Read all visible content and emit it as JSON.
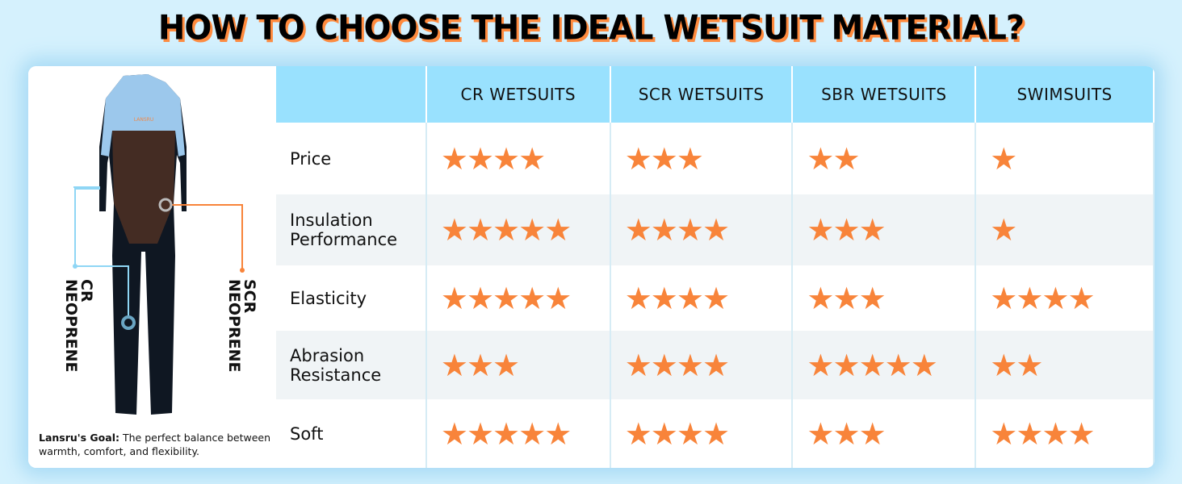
{
  "title": "HOW TO CHOOSE THE IDEAL WETSUIT MATERIAL?",
  "left_panel": {
    "label_cr": "CR\nNEOPRENE",
    "label_scr": "SCR\nNEOPRENE",
    "goal_bold": "Lansru's Goal:",
    "goal_text": " The perfect balance between warmth, comfort, and flexibility.",
    "brand_logo": "LANSRU"
  },
  "table": {
    "headers": [
      "",
      "CR WETSUITS",
      "SCR WETSUITS",
      "SBR WETSUITS",
      "SWIMSUITS"
    ],
    "rows": [
      {
        "label": "Price",
        "ratings": [
          4,
          3,
          2,
          1
        ]
      },
      {
        "label": "Insulation Performance",
        "ratings": [
          5,
          4,
          3,
          1
        ]
      },
      {
        "label": "Elasticity",
        "ratings": [
          5,
          4,
          3,
          4
        ]
      },
      {
        "label": "Abrasion Resistance",
        "ratings": [
          3,
          4,
          5,
          2
        ]
      },
      {
        "label": "Soft",
        "ratings": [
          5,
          4,
          3,
          4
        ]
      }
    ],
    "star_color": "#f8843a",
    "header_color": "#99e1fe"
  }
}
